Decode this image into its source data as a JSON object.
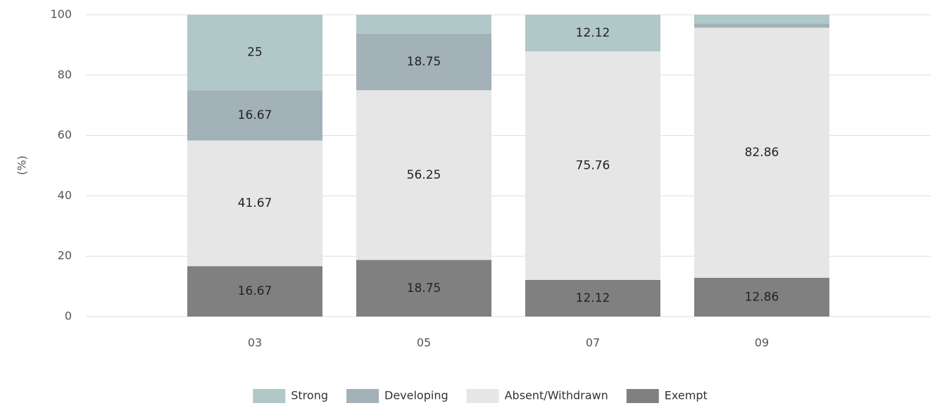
{
  "chart_data": {
    "type": "stacked_bar",
    "y_label": "(%)",
    "categories": [
      "03",
      "05",
      "07",
      "09"
    ],
    "series": [
      {
        "name": "Exempt",
        "color": "#808080",
        "values": [
          16.67,
          18.75,
          12.12,
          12.86
        ]
      },
      {
        "name": "Absent/Withdrawn",
        "color": "#e6e6e6",
        "values": [
          41.67,
          56.25,
          75.76,
          82.86
        ]
      },
      {
        "name": "Developing",
        "color": "#a3b1b8",
        "values": [
          16.67,
          18.75,
          0,
          1.43
        ]
      },
      {
        "name": "Strong",
        "color": "#b0c8c8",
        "values": [
          25,
          6.25,
          12.12,
          2.86
        ]
      }
    ],
    "legend_order": [
      3,
      2,
      1,
      0
    ],
    "ylim": [
      0,
      100
    ],
    "yticks": [
      0,
      20,
      40,
      60,
      80,
      100
    ],
    "grid": true,
    "legend": "bottom"
  }
}
